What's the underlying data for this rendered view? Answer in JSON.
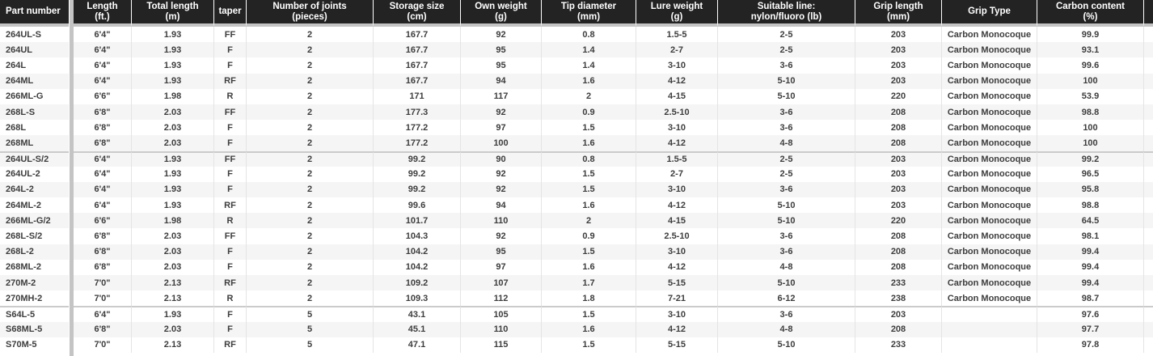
{
  "chart_data": {
    "type": "table",
    "title": "Fishing rod specifications table",
    "grip_type_value": "Carbon Monocoque",
    "columns": [
      {
        "id": "part",
        "label": "Part number"
      },
      {
        "id": "length_ft",
        "label": "Length\n(ft.)"
      },
      {
        "id": "total_length_m",
        "label": "Total length\n(m)"
      },
      {
        "id": "taper",
        "label": "taper"
      },
      {
        "id": "joints",
        "label": "Number of joints\n(pieces)"
      },
      {
        "id": "storage_cm",
        "label": "Storage size\n(cm)"
      },
      {
        "id": "own_weight_g",
        "label": "Own weight\n(g)"
      },
      {
        "id": "tip_mm",
        "label": "Tip diameter\n(mm)"
      },
      {
        "id": "lure_g",
        "label": "Lure weight\n(g)"
      },
      {
        "id": "line_lb",
        "label": "Suitable line:\nnylon/fluoro (lb)"
      },
      {
        "id": "grip_len_mm",
        "label": "Grip length\n(mm)"
      },
      {
        "id": "grip_type",
        "label": "Grip Type"
      },
      {
        "id": "carbon_pct",
        "label": "Carbon content\n(%)"
      }
    ],
    "groups": [
      {
        "first_shade": "white",
        "rows": [
          [
            "264UL-S",
            "6'4\"",
            "1.93",
            "FF",
            "2",
            "167.7",
            "92",
            "0.8",
            "1.5-5",
            "2-5",
            "203",
            "Carbon Monocoque",
            "99.9"
          ],
          [
            "264UL",
            "6'4\"",
            "1.93",
            "F",
            "2",
            "167.7",
            "95",
            "1.4",
            "2-7",
            "2-5",
            "203",
            "Carbon Monocoque",
            "93.1"
          ],
          [
            "264L",
            "6'4\"",
            "1.93",
            "F",
            "2",
            "167.7",
            "95",
            "1.4",
            "3-10",
            "3-6",
            "203",
            "Carbon Monocoque",
            "99.6"
          ],
          [
            "264ML",
            "6'4\"",
            "1.93",
            "RF",
            "2",
            "167.7",
            "94",
            "1.6",
            "4-12",
            "5-10",
            "203",
            "Carbon Monocoque",
            "100"
          ],
          [
            "266ML-G",
            "6'6\"",
            "1.98",
            "R",
            "2",
            "171",
            "117",
            "2",
            "4-15",
            "5-10",
            "220",
            "Carbon Monocoque",
            "53.9"
          ],
          [
            "268L-S",
            "6'8\"",
            "2.03",
            "FF",
            "2",
            "177.3",
            "92",
            "0.9",
            "2.5-10",
            "3-6",
            "208",
            "Carbon Monocoque",
            "98.8"
          ],
          [
            "268L",
            "6'8\"",
            "2.03",
            "F",
            "2",
            "177.2",
            "97",
            "1.5",
            "3-10",
            "3-6",
            "208",
            "Carbon Monocoque",
            "100"
          ],
          [
            "268ML",
            "6'8\"",
            "2.03",
            "F",
            "2",
            "177.2",
            "100",
            "1.6",
            "4-12",
            "4-8",
            "208",
            "Carbon Monocoque",
            "100"
          ]
        ]
      },
      {
        "first_shade": "gray",
        "rows": [
          [
            "264UL-S/2",
            "6'4\"",
            "1.93",
            "FF",
            "2",
            "99.2",
            "90",
            "0.8",
            "1.5-5",
            "2-5",
            "203",
            "Carbon Monocoque",
            "99.2"
          ],
          [
            "264UL-2",
            "6'4\"",
            "1.93",
            "F",
            "2",
            "99.2",
            "92",
            "1.5",
            "2-7",
            "2-5",
            "203",
            "Carbon Monocoque",
            "96.5"
          ],
          [
            "264L-2",
            "6'4\"",
            "1.93",
            "F",
            "2",
            "99.2",
            "92",
            "1.5",
            "3-10",
            "3-6",
            "203",
            "Carbon Monocoque",
            "95.8"
          ],
          [
            "264ML-2",
            "6'4\"",
            "1.93",
            "RF",
            "2",
            "99.6",
            "94",
            "1.6",
            "4-12",
            "5-10",
            "203",
            "Carbon Monocoque",
            "98.8"
          ],
          [
            "266ML-G/2",
            "6'6\"",
            "1.98",
            "R",
            "2",
            "101.7",
            "110",
            "2",
            "4-15",
            "5-10",
            "220",
            "Carbon Monocoque",
            "64.5"
          ],
          [
            "268L-S/2",
            "6'8\"",
            "2.03",
            "FF",
            "2",
            "104.3",
            "92",
            "0.9",
            "2.5-10",
            "3-6",
            "208",
            "Carbon Monocoque",
            "98.1"
          ],
          [
            "268L-2",
            "6'8\"",
            "2.03",
            "F",
            "2",
            "104.2",
            "95",
            "1.5",
            "3-10",
            "3-6",
            "208",
            "Carbon Monocoque",
            "99.4"
          ],
          [
            "268ML-2",
            "6'8\"",
            "2.03",
            "F",
            "2",
            "104.2",
            "97",
            "1.6",
            "4-12",
            "4-8",
            "208",
            "Carbon Monocoque",
            "99.4"
          ],
          [
            "270M-2",
            "7'0\"",
            "2.13",
            "RF",
            "2",
            "109.2",
            "107",
            "1.7",
            "5-15",
            "5-10",
            "233",
            "Carbon Monocoque",
            "99.4"
          ],
          [
            "270MH-2",
            "7'0\"",
            "2.13",
            "R",
            "2",
            "109.3",
            "112",
            "1.8",
            "7-21",
            "6-12",
            "238",
            "Carbon Monocoque",
            "98.7"
          ]
        ]
      },
      {
        "first_shade": "white",
        "rows": [
          [
            "S64L-5",
            "6'4\"",
            "1.93",
            "F",
            "5",
            "43.1",
            "105",
            "1.5",
            "3-10",
            "3-6",
            "203",
            "",
            "97.6"
          ],
          [
            "S68ML-5",
            "6'8\"",
            "2.03",
            "F",
            "5",
            "45.1",
            "110",
            "1.6",
            "4-12",
            "4-8",
            "208",
            "",
            "97.7"
          ],
          [
            "S70M-5",
            "7'0\"",
            "2.13",
            "RF",
            "5",
            "47.1",
            "115",
            "1.5",
            "5-15",
            "5-10",
            "233",
            "",
            "97.8"
          ]
        ]
      }
    ],
    "colors": {
      "header_bg": "#232323",
      "header_text": "#ffffff",
      "row_alt_bg": "#f5f5f5",
      "divider_gray": "#c4c4c4",
      "cell_separator": "#e4e4e4",
      "group_separator": "#cbcbcb",
      "body_text": "#3d3d3d"
    }
  }
}
